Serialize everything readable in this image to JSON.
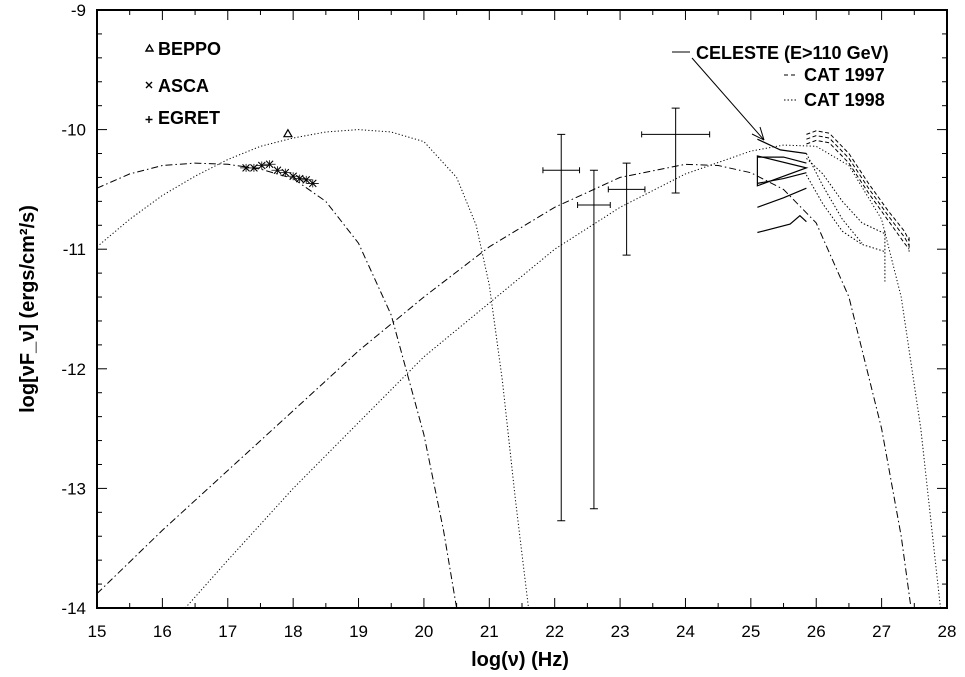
{
  "chart_data": {
    "type": "scatter",
    "title": "",
    "xlabel": "log(ν)  (Hz)",
    "ylabel": "log[νF_ν]  (ergs/cm²/s)",
    "xlim": [
      15,
      28
    ],
    "ylim": [
      -14,
      -9
    ],
    "x_ticks": [
      "15",
      "16",
      "17",
      "18",
      "19",
      "20",
      "21",
      "22",
      "23",
      "24",
      "25",
      "26",
      "27",
      "28"
    ],
    "y_ticks": [
      "-9",
      "-10",
      "-11",
      "-12",
      "-13",
      "-14"
    ],
    "grid": false,
    "legend": {
      "placement": "top-left",
      "entries": [
        {
          "marker": "triangle",
          "label": "BEPPO"
        },
        {
          "marker": "x",
          "label": "ASCA"
        },
        {
          "marker": "plus",
          "label": "EGRET"
        }
      ]
    },
    "legend_right": {
      "placement": "top-right",
      "entries": [
        {
          "style": "solid",
          "label": "CELESTE (E>110 GeV)"
        },
        {
          "style": "dashed",
          "label": "CAT 1997"
        },
        {
          "style": "dotted",
          "label": "CAT 1998"
        }
      ]
    },
    "beppo": [
      {
        "x": 17.92,
        "y": -10.03
      }
    ],
    "asca": [
      {
        "x": 17.28,
        "y": -10.32
      },
      {
        "x": 17.4,
        "y": -10.32
      },
      {
        "x": 17.52,
        "y": -10.3
      },
      {
        "x": 17.64,
        "y": -10.29
      },
      {
        "x": 17.76,
        "y": -10.34
      },
      {
        "x": 17.88,
        "y": -10.36
      },
      {
        "x": 18.0,
        "y": -10.39
      },
      {
        "x": 18.1,
        "y": -10.41
      },
      {
        "x": 18.2,
        "y": -10.42
      },
      {
        "x": 18.3,
        "y": -10.45
      }
    ],
    "egret": [
      {
        "x": 22.1,
        "xerr": 0.28,
        "y": -10.34,
        "ylo": -13.27,
        "yhi": -10.04
      },
      {
        "x": 22.6,
        "xerr": 0.25,
        "y": -10.63,
        "ylo": -13.17,
        "yhi": -10.34
      },
      {
        "x": 23.1,
        "xerr": 0.28,
        "y": -10.5,
        "ylo": -11.05,
        "yhi": -10.28
      },
      {
        "x": 23.85,
        "xerr": 0.52,
        "y": -10.04,
        "ylo": -10.53,
        "yhi": -9.82
      }
    ],
    "celeste_bowtie": {
      "x0": 25.1,
      "x1": 25.85,
      "y_mid": -10.32,
      "y_hi_left": -10.22,
      "y_lo_left": -10.47
    },
    "curves": [
      {
        "name": "",
        "style": "dashdot",
        "points": [
          [
            15,
            -10.49
          ],
          [
            15.5,
            -10.37
          ],
          [
            16,
            -10.3
          ],
          [
            16.5,
            -10.28
          ],
          [
            17,
            -10.29
          ],
          [
            17.5,
            -10.33
          ],
          [
            18,
            -10.41
          ],
          [
            18.5,
            -10.6
          ],
          [
            19,
            -10.95
          ],
          [
            19.5,
            -11.55
          ],
          [
            20,
            -12.55
          ],
          [
            20.3,
            -13.35
          ],
          [
            20.5,
            -14.0
          ]
        ]
      },
      {
        "name": "",
        "style": "dashdot",
        "points": [
          [
            15,
            -13.88
          ],
          [
            16,
            -13.35
          ],
          [
            17,
            -12.85
          ],
          [
            18,
            -12.35
          ],
          [
            19,
            -11.85
          ],
          [
            20,
            -11.4
          ],
          [
            21,
            -10.98
          ],
          [
            22,
            -10.65
          ],
          [
            23,
            -10.4
          ],
          [
            24,
            -10.29
          ],
          [
            24.5,
            -10.3
          ],
          [
            25,
            -10.36
          ],
          [
            25.5,
            -10.5
          ],
          [
            26,
            -10.78
          ],
          [
            26.5,
            -11.4
          ],
          [
            27,
            -12.5
          ],
          [
            27.3,
            -13.4
          ],
          [
            27.45,
            -14.0
          ]
        ]
      },
      {
        "name": "",
        "style": "dotted",
        "points": [
          [
            15,
            -10.98
          ],
          [
            15.5,
            -10.75
          ],
          [
            16,
            -10.55
          ],
          [
            16.5,
            -10.39
          ],
          [
            17,
            -10.25
          ],
          [
            17.5,
            -10.14
          ],
          [
            18,
            -10.07
          ],
          [
            18.5,
            -10.02
          ],
          [
            19,
            -10.0
          ],
          [
            19.5,
            -10.02
          ],
          [
            20,
            -10.1
          ],
          [
            20.5,
            -10.4
          ],
          [
            20.8,
            -10.8
          ],
          [
            21.0,
            -11.3
          ],
          [
            21.2,
            -12.1
          ],
          [
            21.4,
            -13.1
          ],
          [
            21.6,
            -14.0
          ]
        ]
      },
      {
        "name": "",
        "style": "dotted",
        "points": [
          [
            16.35,
            -14.0
          ],
          [
            17,
            -13.6
          ],
          [
            18,
            -13.0
          ],
          [
            19,
            -12.45
          ],
          [
            20,
            -11.9
          ],
          [
            21,
            -11.45
          ],
          [
            22,
            -11.0
          ],
          [
            23,
            -10.65
          ],
          [
            24,
            -10.37
          ],
          [
            25,
            -10.18
          ],
          [
            25.5,
            -10.13
          ],
          [
            26,
            -10.14
          ],
          [
            26.5,
            -10.3
          ],
          [
            27,
            -10.75
          ],
          [
            27.3,
            -11.4
          ],
          [
            27.6,
            -12.5
          ],
          [
            27.8,
            -13.5
          ],
          [
            27.9,
            -14.0
          ]
        ]
      }
    ],
    "celeste_lines": [
      [
        [
          25.1,
          -10.08
        ],
        [
          25.45,
          -10.17
        ],
        [
          25.85,
          -10.2
        ]
      ],
      [
        [
          25.1,
          -10.23
        ],
        [
          25.5,
          -10.23
        ],
        [
          25.85,
          -10.28
        ]
      ],
      [
        [
          25.1,
          -10.45
        ],
        [
          25.5,
          -10.41
        ],
        [
          25.85,
          -10.36
        ]
      ],
      [
        [
          25.1,
          -10.65
        ],
        [
          25.5,
          -10.57
        ],
        [
          25.85,
          -10.49
        ]
      ],
      [
        [
          25.1,
          -10.86
        ],
        [
          25.6,
          -10.79
        ],
        [
          25.75,
          -10.72
        ],
        [
          25.85,
          -10.77
        ]
      ]
    ],
    "cat1997_lines": [
      [
        [
          25.85,
          -10.04
        ],
        [
          26.0,
          -10.01
        ],
        [
          26.2,
          -10.03
        ],
        [
          26.5,
          -10.2
        ],
        [
          26.8,
          -10.45
        ],
        [
          27.1,
          -10.68
        ],
        [
          27.35,
          -10.85
        ],
        [
          27.42,
          -10.93
        ]
      ],
      [
        [
          25.85,
          -10.08
        ],
        [
          26.0,
          -10.05
        ],
        [
          26.2,
          -10.07
        ],
        [
          26.5,
          -10.24
        ],
        [
          26.8,
          -10.49
        ],
        [
          27.1,
          -10.72
        ],
        [
          27.35,
          -10.9
        ],
        [
          27.42,
          -10.97
        ]
      ],
      [
        [
          25.85,
          -10.12
        ],
        [
          26.0,
          -10.09
        ],
        [
          26.2,
          -10.11
        ],
        [
          26.5,
          -10.28
        ],
        [
          26.8,
          -10.53
        ],
        [
          27.1,
          -10.76
        ],
        [
          27.35,
          -10.95
        ],
        [
          27.42,
          -11.0
        ]
      ],
      [
        [
          27.42,
          -10.9
        ],
        [
          27.42,
          -11.02
        ]
      ]
    ],
    "cat1998_lines": [
      [
        [
          25.85,
          -10.24
        ],
        [
          26.1,
          -10.37
        ],
        [
          26.4,
          -10.6
        ],
        [
          26.7,
          -10.78
        ],
        [
          27.05,
          -10.87
        ]
      ],
      [
        [
          25.85,
          -10.38
        ],
        [
          26.1,
          -10.62
        ],
        [
          26.4,
          -10.85
        ],
        [
          26.7,
          -10.96
        ],
        [
          27.05,
          -11.02
        ]
      ],
      [
        [
          27.05,
          -10.85
        ],
        [
          27.05,
          -11.27
        ]
      ],
      [
        [
          25.85,
          -10.2
        ],
        [
          26.1,
          -10.47
        ],
        [
          26.4,
          -10.75
        ],
        [
          26.7,
          -10.95
        ]
      ]
    ]
  }
}
